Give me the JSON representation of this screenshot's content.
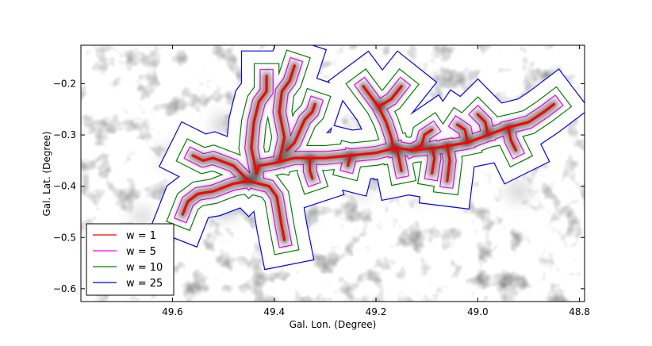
{
  "chart_data": {
    "type": "line",
    "title": "",
    "xlabel": "Gal. Lon. (Degree)",
    "ylabel": "Gal. Lat. (Degree)",
    "xlim": [
      49.78,
      48.79
    ],
    "ylim": [
      -0.625,
      -0.125
    ],
    "x_reversed": true,
    "x_ticks": [
      49.6,
      49.4,
      49.2,
      49.0,
      48.8
    ],
    "x_tick_labels": [
      "49.6",
      "49.4",
      "49.2",
      "49.0",
      "48.8"
    ],
    "y_ticks": [
      -0.2,
      -0.3,
      -0.4,
      -0.5,
      -0.6
    ],
    "y_tick_labels": [
      "−0.2",
      "−0.3",
      "−0.4",
      "−0.5",
      "−0.6"
    ],
    "grid": false,
    "background": "grayscale intensity map",
    "legend_position": "lower-left",
    "series": [
      {
        "name": "w = 1",
        "color": "#ff0000"
      },
      {
        "name": "w = 5",
        "color": "#ff00ff"
      },
      {
        "name": "w = 10",
        "color": "#008000"
      },
      {
        "name": "w = 25",
        "color": "#0000ff"
      }
    ],
    "filament_skeleton": [
      [
        [
          49.435,
          -0.375
        ],
        [
          49.445,
          -0.325
        ],
        [
          49.44,
          -0.275
        ],
        [
          49.43,
          -0.235
        ],
        [
          49.415,
          -0.215
        ],
        [
          49.415,
          -0.185
        ]
      ],
      [
        [
          49.39,
          -0.35
        ],
        [
          49.38,
          -0.305
        ],
        [
          49.39,
          -0.255
        ],
        [
          49.385,
          -0.215
        ],
        [
          49.37,
          -0.195
        ],
        [
          49.36,
          -0.165
        ]
      ],
      [
        [
          49.375,
          -0.33
        ],
        [
          49.36,
          -0.315
        ],
        [
          49.34,
          -0.27
        ],
        [
          49.325,
          -0.255
        ],
        [
          49.32,
          -0.24
        ]
      ],
      [
        [
          49.435,
          -0.375
        ],
        [
          49.43,
          -0.36
        ],
        [
          49.4,
          -0.355
        ],
        [
          49.36,
          -0.345
        ],
        [
          49.3,
          -0.345
        ],
        [
          49.25,
          -0.34
        ],
        [
          49.2,
          -0.335
        ],
        [
          49.16,
          -0.325
        ],
        [
          49.13,
          -0.33
        ],
        [
          49.08,
          -0.325
        ],
        [
          49.02,
          -0.315
        ],
        [
          48.98,
          -0.3
        ],
        [
          48.94,
          -0.285
        ],
        [
          48.9,
          -0.275
        ],
        [
          48.87,
          -0.255
        ],
        [
          48.85,
          -0.24
        ]
      ],
      [
        [
          49.165,
          -0.33
        ],
        [
          49.17,
          -0.305
        ],
        [
          49.18,
          -0.275
        ],
        [
          49.195,
          -0.245
        ],
        [
          49.21,
          -0.225
        ],
        [
          49.225,
          -0.205
        ]
      ],
      [
        [
          49.195,
          -0.245
        ],
        [
          49.17,
          -0.23
        ],
        [
          49.15,
          -0.205
        ]
      ],
      [
        [
          49.13,
          -0.33
        ],
        [
          49.11,
          -0.32
        ],
        [
          49.105,
          -0.3
        ],
        [
          49.09,
          -0.29
        ]
      ],
      [
        [
          49.02,
          -0.315
        ],
        [
          49.025,
          -0.29
        ],
        [
          49.04,
          -0.28
        ]
      ],
      [
        [
          48.98,
          -0.3
        ],
        [
          48.985,
          -0.275
        ],
        [
          49.0,
          -0.26
        ]
      ],
      [
        [
          48.94,
          -0.285
        ],
        [
          48.935,
          -0.31
        ],
        [
          48.925,
          -0.33
        ]
      ],
      [
        [
          49.09,
          -0.325
        ],
        [
          49.085,
          -0.345
        ],
        [
          49.09,
          -0.375
        ]
      ],
      [
        [
          49.06,
          -0.32
        ],
        [
          49.055,
          -0.35
        ],
        [
          49.06,
          -0.39
        ]
      ],
      [
        [
          49.45,
          -0.39
        ],
        [
          49.48,
          -0.36
        ],
        [
          49.52,
          -0.345
        ],
        [
          49.54,
          -0.35
        ],
        [
          49.56,
          -0.34
        ]
      ],
      [
        [
          49.45,
          -0.39
        ],
        [
          49.48,
          -0.395
        ],
        [
          49.52,
          -0.41
        ],
        [
          49.55,
          -0.415
        ],
        [
          49.57,
          -0.43
        ],
        [
          49.58,
          -0.455
        ]
      ],
      [
        [
          49.45,
          -0.39
        ],
        [
          49.41,
          -0.4
        ],
        [
          49.395,
          -0.42
        ],
        [
          49.39,
          -0.45
        ],
        [
          49.385,
          -0.48
        ],
        [
          49.38,
          -0.505
        ]
      ],
      [
        [
          49.33,
          -0.345
        ],
        [
          49.33,
          -0.37
        ],
        [
          49.325,
          -0.385
        ]
      ],
      [
        [
          49.25,
          -0.34
        ],
        [
          49.255,
          -0.36
        ]
      ],
      [
        [
          49.16,
          -0.325
        ],
        [
          49.155,
          -0.345
        ],
        [
          49.15,
          -0.37
        ]
      ]
    ],
    "emission_peaks": [
      [
        49.47,
        -0.38,
        1.0,
        0.05
      ],
      [
        49.45,
        -0.36,
        0.9,
        0.035
      ],
      [
        49.52,
        -0.36,
        0.6,
        0.03
      ],
      [
        49.5,
        -0.43,
        0.5,
        0.03
      ],
      [
        49.42,
        -0.3,
        0.5,
        0.03
      ],
      [
        49.39,
        -0.35,
        0.45,
        0.025
      ],
      [
        49.37,
        -0.26,
        0.4,
        0.025
      ],
      [
        49.4,
        -0.21,
        0.35,
        0.02
      ],
      [
        49.43,
        -0.28,
        0.35,
        0.02
      ],
      [
        49.5,
        -0.28,
        0.55,
        0.015
      ],
      [
        49.6,
        -0.34,
        0.3,
        0.02
      ],
      [
        49.66,
        -0.46,
        0.4,
        0.015
      ],
      [
        49.3,
        -0.345,
        0.35,
        0.02
      ],
      [
        49.2,
        -0.335,
        0.35,
        0.02
      ],
      [
        49.17,
        -0.25,
        0.3,
        0.02
      ],
      [
        49.1,
        -0.33,
        0.35,
        0.02
      ],
      [
        49.02,
        -0.31,
        0.4,
        0.02
      ],
      [
        48.95,
        -0.285,
        0.35,
        0.02
      ],
      [
        48.88,
        -0.26,
        0.35,
        0.02
      ],
      [
        48.92,
        -0.41,
        0.3,
        0.02
      ],
      [
        49.23,
        -0.41,
        0.25,
        0.015
      ],
      [
        49.11,
        -0.41,
        0.2,
        0.02
      ],
      [
        49.38,
        -0.48,
        0.35,
        0.02
      ],
      [
        49.35,
        -0.46,
        0.2,
        0.02
      ]
    ]
  }
}
